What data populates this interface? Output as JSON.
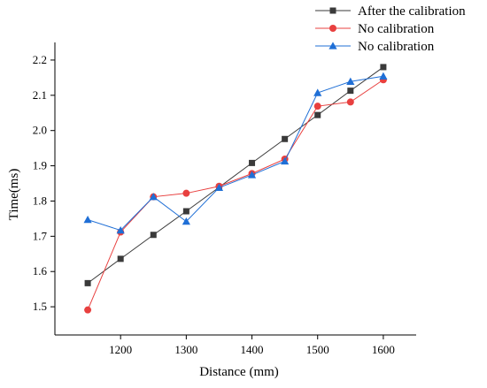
{
  "chart_data": {
    "type": "line",
    "title": "",
    "xlabel": "Distance (mm)",
    "ylabel": "Time(ms)",
    "xlim": [
      1100,
      1650
    ],
    "ylim": [
      1.42,
      2.25
    ],
    "xticks": [
      1200,
      1300,
      1400,
      1500,
      1600
    ],
    "yticks": [
      1.5,
      1.6,
      1.7,
      1.8,
      1.9,
      2.0,
      2.1,
      2.2
    ],
    "grid": false,
    "legend_position": "top-right, outside plot",
    "x": [
      1150,
      1200,
      1250,
      1300,
      1350,
      1400,
      1450,
      1500,
      1550,
      1600
    ],
    "series": [
      {
        "name": "After the calibration",
        "marker": "square",
        "color": "#3a3a3a",
        "values": [
          1.567,
          1.636,
          1.704,
          1.771,
          1.839,
          1.908,
          1.976,
          2.044,
          2.113,
          2.18
        ]
      },
      {
        "name": "No calibration",
        "marker": "circle",
        "color": "#e8403f",
        "values": [
          1.491,
          1.712,
          1.812,
          1.822,
          1.842,
          1.878,
          1.919,
          2.069,
          2.081,
          2.144
        ]
      },
      {
        "name": "No calibration",
        "marker": "triangle",
        "color": "#1f6fd6",
        "values": [
          1.747,
          1.717,
          1.812,
          1.742,
          1.838,
          1.874,
          1.913,
          2.107,
          2.139,
          2.154
        ]
      }
    ]
  }
}
